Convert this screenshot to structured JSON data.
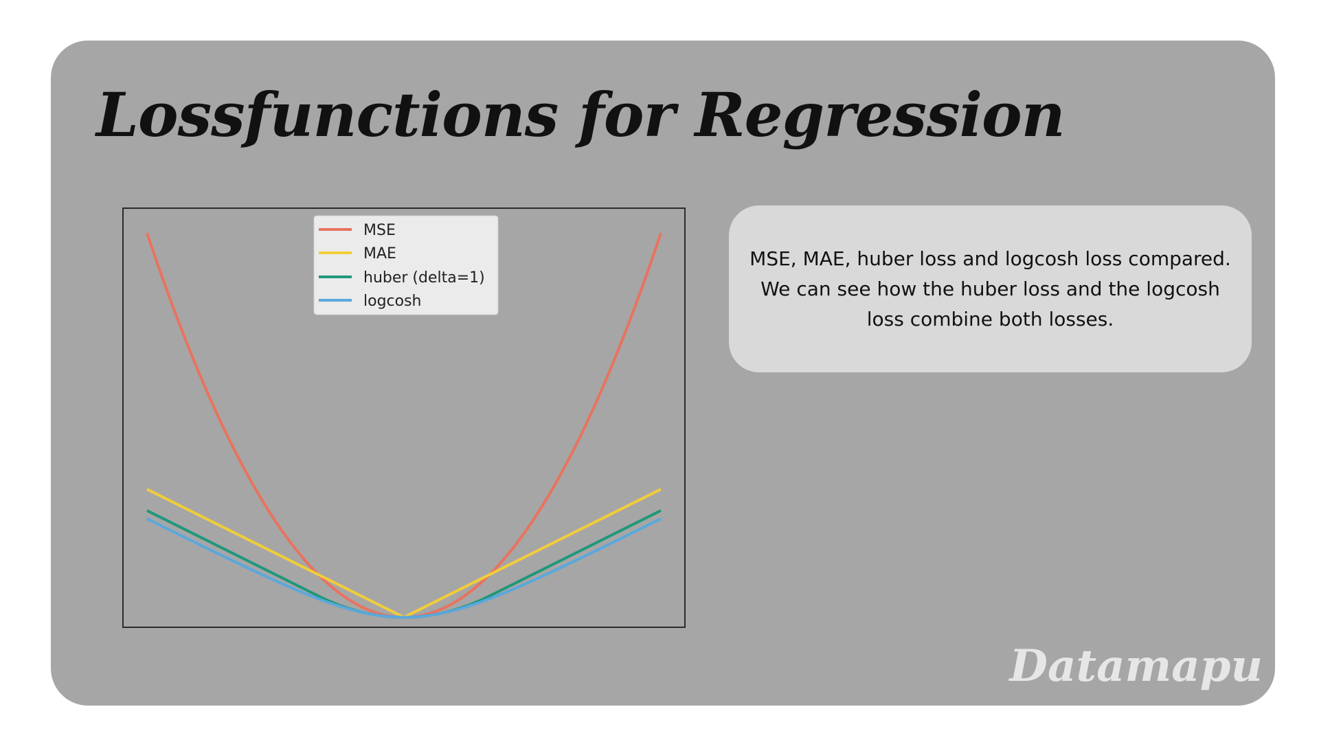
{
  "page": {
    "title": "Lossfunctions for Regression",
    "brand": "Datamapu"
  },
  "note": {
    "text": "MSE, MAE, huber loss and  logcosh loss compared. We can see how the huber loss and the logcosh loss combine both losses."
  },
  "colors": {
    "card_background": "#a6a6a6",
    "note_background": "#d9d9d9",
    "mse": "#e8735f",
    "mae": "#f2cd3a",
    "huber": "#20977a",
    "logcosh": "#5aa8dc",
    "legend_background": "#ebebeb"
  },
  "chart_data": {
    "type": "line",
    "x_range": [
      -3,
      3
    ],
    "ylim": [
      -0.25,
      9.6
    ],
    "grid": false,
    "legend_position": "upper center",
    "axis_ticks_shown": false,
    "series": [
      {
        "name": "MSE",
        "function": "x^2",
        "color": "#e8735f"
      },
      {
        "name": "MAE",
        "function": "|x|",
        "color": "#f2cd3a"
      },
      {
        "name": "huber (delta=1)",
        "function": "0.5*x^2 if |x|<=1 else |x|-0.5",
        "color": "#20977a"
      },
      {
        "name": "logcosh",
        "function": "log(cosh(x))",
        "color": "#5aa8dc"
      }
    ]
  }
}
